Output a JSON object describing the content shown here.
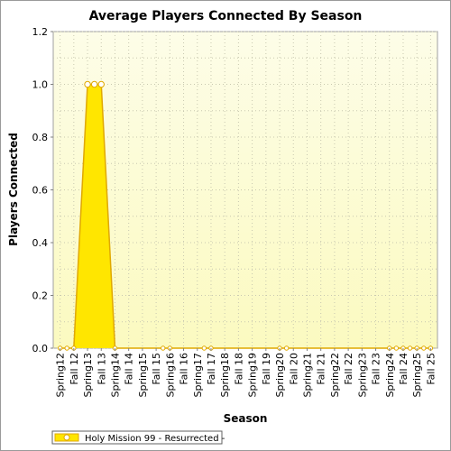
{
  "chart_data": {
    "type": "area",
    "title": "Average Players Connected By Season",
    "xlabel": "Season",
    "ylabel": "Players Connected",
    "ylim": [
      0,
      1.2
    ],
    "yticks": [
      "0.0",
      "0.2",
      "0.4",
      "0.6",
      "0.8",
      "1.0",
      "1.2"
    ],
    "grid": true,
    "legend_position": "bottom-left",
    "categories": [
      "Spring12",
      "Fall 12",
      "Spring13",
      "Fall 13",
      "Spring14",
      "Fall 14",
      "Spring15",
      "Fall 15",
      "Spring16",
      "Fall 16",
      "Spring17",
      "Fall 17",
      "Spring18",
      "Fall 18",
      "Spring19",
      "Fall 19",
      "Spring20",
      "Fall 20",
      "Spring21",
      "Fall 21",
      "Spring22",
      "Fall 22",
      "Spring23",
      "Fall 23",
      "Spring24",
      "Fall 24",
      "Spring25",
      "Fall 25"
    ],
    "series": [
      {
        "name": "Holy Mission 99 - Resurrected -",
        "color": "#ffe600",
        "outline": "#e0a800",
        "points": [
          {
            "x": 0,
            "y": 0
          },
          {
            "x": 0.5,
            "y": 0
          },
          {
            "x": 1,
            "y": 0
          },
          {
            "x": 2,
            "y": 1.0
          },
          {
            "x": 2.5,
            "y": 1.0
          },
          {
            "x": 3,
            "y": 1.0
          },
          {
            "x": 4,
            "y": 0
          },
          {
            "x": 7.5,
            "y": 0
          },
          {
            "x": 8,
            "y": 0
          },
          {
            "x": 10.5,
            "y": 0
          },
          {
            "x": 11,
            "y": 0
          },
          {
            "x": 16,
            "y": 0
          },
          {
            "x": 16.5,
            "y": 0
          },
          {
            "x": 24,
            "y": 0
          },
          {
            "x": 24.5,
            "y": 0
          },
          {
            "x": 25,
            "y": 0
          },
          {
            "x": 25.5,
            "y": 0
          },
          {
            "x": 26,
            "y": 0
          },
          {
            "x": 26.5,
            "y": 0
          },
          {
            "x": 27,
            "y": 0
          }
        ]
      }
    ]
  },
  "colors": {
    "plot_bg_top": "#fdfde8",
    "plot_bg_bottom": "#fbfac0",
    "grid": "#c8c8b0"
  }
}
